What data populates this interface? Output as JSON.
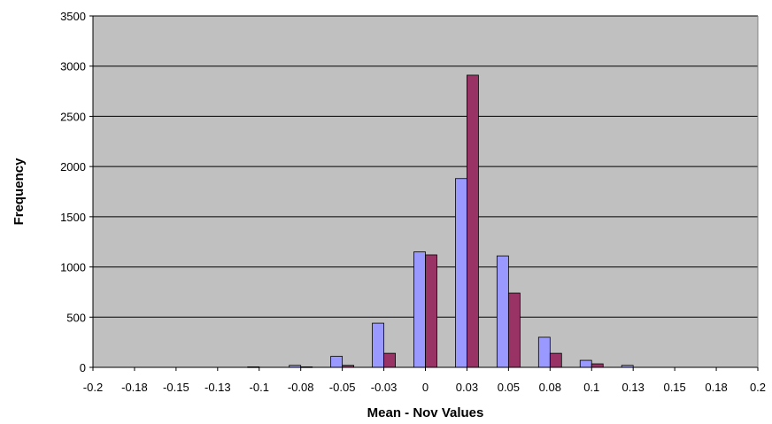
{
  "chart_data": {
    "type": "bar",
    "title": "",
    "xlabel": "Mean - Nov Values",
    "ylabel": "Frequency",
    "categories": [
      "-0.2",
      "-0.18",
      "-0.15",
      "-0.13",
      "-0.1",
      "-0.08",
      "-0.05",
      "-0.03",
      "0",
      "0.03",
      "0.05",
      "0.08",
      "0.1",
      "0.13",
      "0.15",
      "0.18",
      "0.2"
    ],
    "series": [
      {
        "values": [
          0,
          0,
          0,
          0,
          5,
          20,
          110,
          440,
          1150,
          1880,
          1110,
          300,
          70,
          20,
          0,
          0,
          0
        ],
        "color": "#9999ff"
      },
      {
        "values": [
          0,
          0,
          0,
          0,
          0,
          5,
          20,
          140,
          1120,
          2910,
          740,
          140,
          35,
          0,
          0,
          0,
          0
        ],
        "color": "#993366"
      }
    ],
    "ylim": [
      0,
      3500
    ],
    "yticks": [
      0,
      500,
      1000,
      1500,
      2000,
      2500,
      3000,
      3500
    ],
    "grid": true,
    "legend": "none",
    "plot_background": "#c0c0c0"
  }
}
